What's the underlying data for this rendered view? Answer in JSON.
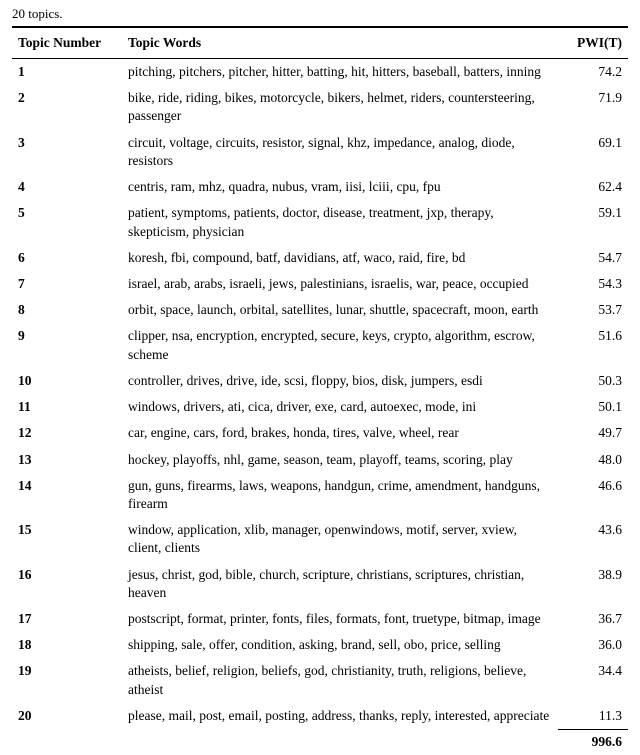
{
  "caption": "20 topics.",
  "columns": [
    "Topic Number",
    "Topic Words",
    "PWI(T)"
  ],
  "rows": [
    {
      "num": "1",
      "words": "pitching, pitchers, pitcher, hitter, batting, hit, hitters, baseball, batters, inning",
      "pwi": "74.2"
    },
    {
      "num": "2",
      "words": "bike, ride, riding, bikes, motorcycle, bikers, helmet, riders, countersteering, passenger",
      "pwi": "71.9"
    },
    {
      "num": "3",
      "words": "circuit, voltage, circuits, resistor, signal, khz, impedance, analog, diode, resistors",
      "pwi": "69.1"
    },
    {
      "num": "4",
      "words": "centris, ram, mhz, quadra, nubus, vram, iisi, lciii, cpu, fpu",
      "pwi": "62.4"
    },
    {
      "num": "5",
      "words": "patient, symptoms, patients, doctor, disease, treatment, jxp, therapy, skepticism, physician",
      "pwi": "59.1"
    },
    {
      "num": "6",
      "words": "koresh, fbi, compound, batf, davidians, atf, waco, raid, fire, bd",
      "pwi": "54.7"
    },
    {
      "num": "7",
      "words": "israel, arab, arabs, israeli, jews, palestinians, israelis, war, peace, occupied",
      "pwi": "54.3"
    },
    {
      "num": "8",
      "words": "orbit, space, launch, orbital, satellites, lunar, shuttle, spacecraft, moon, earth",
      "pwi": "53.7"
    },
    {
      "num": "9",
      "words": "clipper, nsa, encryption, encrypted, secure, keys, crypto, algorithm, escrow, scheme",
      "pwi": "51.6"
    },
    {
      "num": "10",
      "words": "controller, drives, drive, ide, scsi, floppy, bios, disk, jumpers, esdi",
      "pwi": "50.3"
    },
    {
      "num": "11",
      "words": "windows, drivers, ati, cica, driver, exe, card, autoexec, mode, ini",
      "pwi": "50.1"
    },
    {
      "num": "12",
      "words": "car, engine, cars, ford, brakes, honda, tires, valve, wheel, rear",
      "pwi": "49.7"
    },
    {
      "num": "13",
      "words": "hockey, playoffs, nhl, game, season, team, playoff, teams, scoring, play",
      "pwi": "48.0"
    },
    {
      "num": "14",
      "words": "gun, guns, firearms, laws, weapons, handgun, crime, amendment, handguns, firearm",
      "pwi": "46.6"
    },
    {
      "num": "15",
      "words": "window, application, xlib, manager, openwindows, motif, server, xview, client, clients",
      "pwi": "43.6"
    },
    {
      "num": "16",
      "words": "jesus, christ, god, bible, church, scripture, christians, scriptures, christian, heaven",
      "pwi": "38.9"
    },
    {
      "num": "17",
      "words": "postscript, format, printer, fonts, files, formats, font, truetype, bitmap, image",
      "pwi": "36.7"
    },
    {
      "num": "18",
      "words": "shipping, sale, offer, condition, asking, brand, sell, obo, price, selling",
      "pwi": "36.0"
    },
    {
      "num": "19",
      "words": "atheists, belief, religion, beliefs, god, christianity, truth, religions, believe, atheist",
      "pwi": "34.4"
    },
    {
      "num": "20",
      "words": "please, mail, post, email, posting, address, thanks, reply, interested, appreciate",
      "pwi": "11.3"
    }
  ],
  "total": "996.6"
}
